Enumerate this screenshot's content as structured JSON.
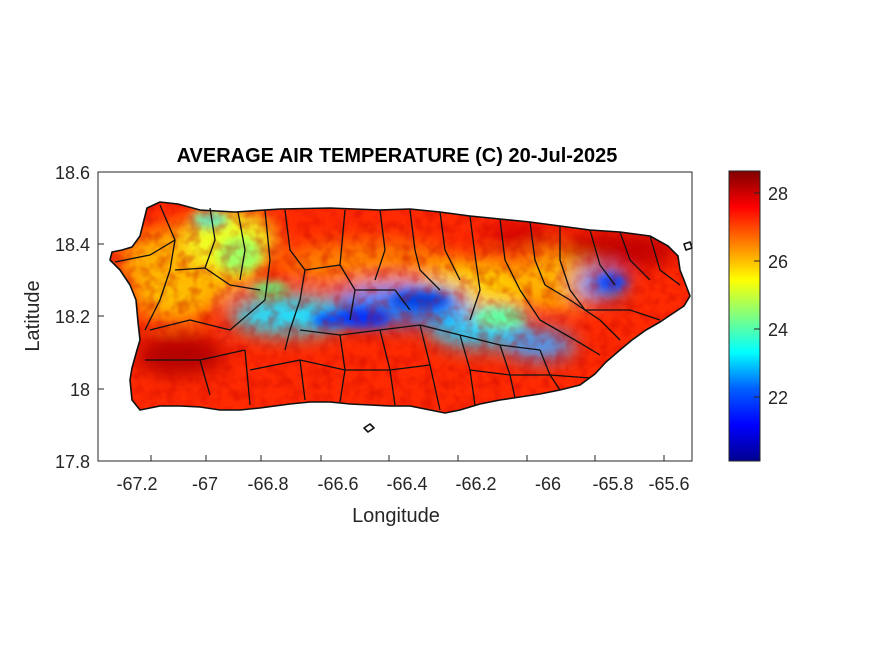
{
  "map": {
    "title": "AVERAGE AIR TEMPERATURE (C) 20-Jul-2025",
    "xlabel": "Longitude",
    "ylabel": "Latitude",
    "xticks": [
      "-67.2",
      "-67",
      "-66.8",
      "-66.6",
      "-66.4",
      "-66.2",
      "-66",
      "-65.8",
      "-65.6"
    ],
    "yticks": [
      "18.6",
      "18.4",
      "18.2",
      "18"
    ],
    "ytick_bottom": "17.8",
    "xlim": [
      -67.3,
      -65.57
    ],
    "ylim": [
      17.8,
      18.6
    ],
    "colorbar": {
      "ticks": [
        "28",
        "26",
        "24",
        "22"
      ],
      "range": [
        20.1,
        28.7
      ],
      "colormap": "jet",
      "colors": [
        "#00008f",
        "#0000ff",
        "#0080ff",
        "#00ffff",
        "#80ff80",
        "#ffff00",
        "#ff8000",
        "#ff0000",
        "#800000"
      ]
    }
  }
}
